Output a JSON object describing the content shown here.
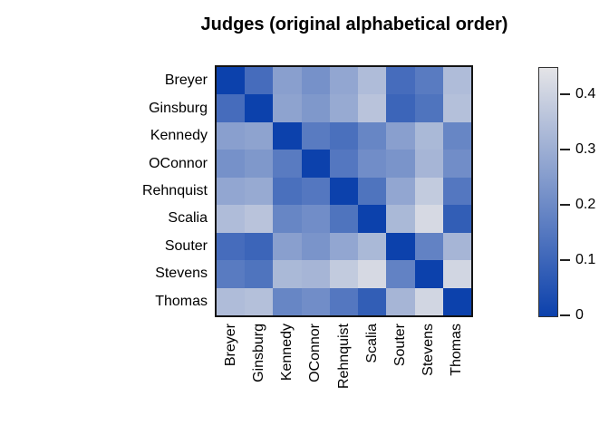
{
  "title": "Judges (original alphabetical order)",
  "chart_data": {
    "type": "heatmap",
    "title": "Judges (original alphabetical order)",
    "row_labels": [
      "Breyer",
      "Ginsburg",
      "Kennedy",
      "OConnor",
      "Rehnquist",
      "Scalia",
      "Souter",
      "Stevens",
      "Thomas"
    ],
    "col_labels": [
      "Breyer",
      "Ginsburg",
      "Kennedy",
      "OConnor",
      "Rehnquist",
      "Scalia",
      "Souter",
      "Stevens",
      "Thomas"
    ],
    "matrix": [
      [
        0.0,
        0.12,
        0.26,
        0.22,
        0.28,
        0.34,
        0.12,
        0.16,
        0.34
      ],
      [
        0.12,
        0.0,
        0.27,
        0.24,
        0.29,
        0.36,
        0.1,
        0.14,
        0.35
      ],
      [
        0.26,
        0.27,
        0.0,
        0.16,
        0.13,
        0.19,
        0.26,
        0.33,
        0.19
      ],
      [
        0.22,
        0.24,
        0.16,
        0.0,
        0.15,
        0.21,
        0.23,
        0.32,
        0.21
      ],
      [
        0.28,
        0.29,
        0.13,
        0.15,
        0.0,
        0.14,
        0.28,
        0.38,
        0.15
      ],
      [
        0.34,
        0.36,
        0.19,
        0.21,
        0.14,
        0.0,
        0.33,
        0.42,
        0.08
      ],
      [
        0.12,
        0.1,
        0.26,
        0.23,
        0.28,
        0.33,
        0.0,
        0.18,
        0.32
      ],
      [
        0.16,
        0.14,
        0.33,
        0.32,
        0.38,
        0.42,
        0.18,
        0.0,
        0.41
      ],
      [
        0.34,
        0.35,
        0.19,
        0.21,
        0.15,
        0.08,
        0.32,
        0.41,
        0.0
      ]
    ],
    "vmin": 0,
    "vmax": 0.45,
    "color_low": "#0c41ac",
    "color_high": "#e4e4e7",
    "frame_color": "#141414",
    "grid": false,
    "legend_position": "right",
    "colorbar_ticks": [
      {
        "value": 0,
        "label": "0"
      },
      {
        "value": 0.1,
        "label": "0.1"
      },
      {
        "value": 0.2,
        "label": "0.2"
      },
      {
        "value": 0.3,
        "label": "0.3"
      },
      {
        "value": 0.4,
        "label": "0.4"
      }
    ]
  }
}
